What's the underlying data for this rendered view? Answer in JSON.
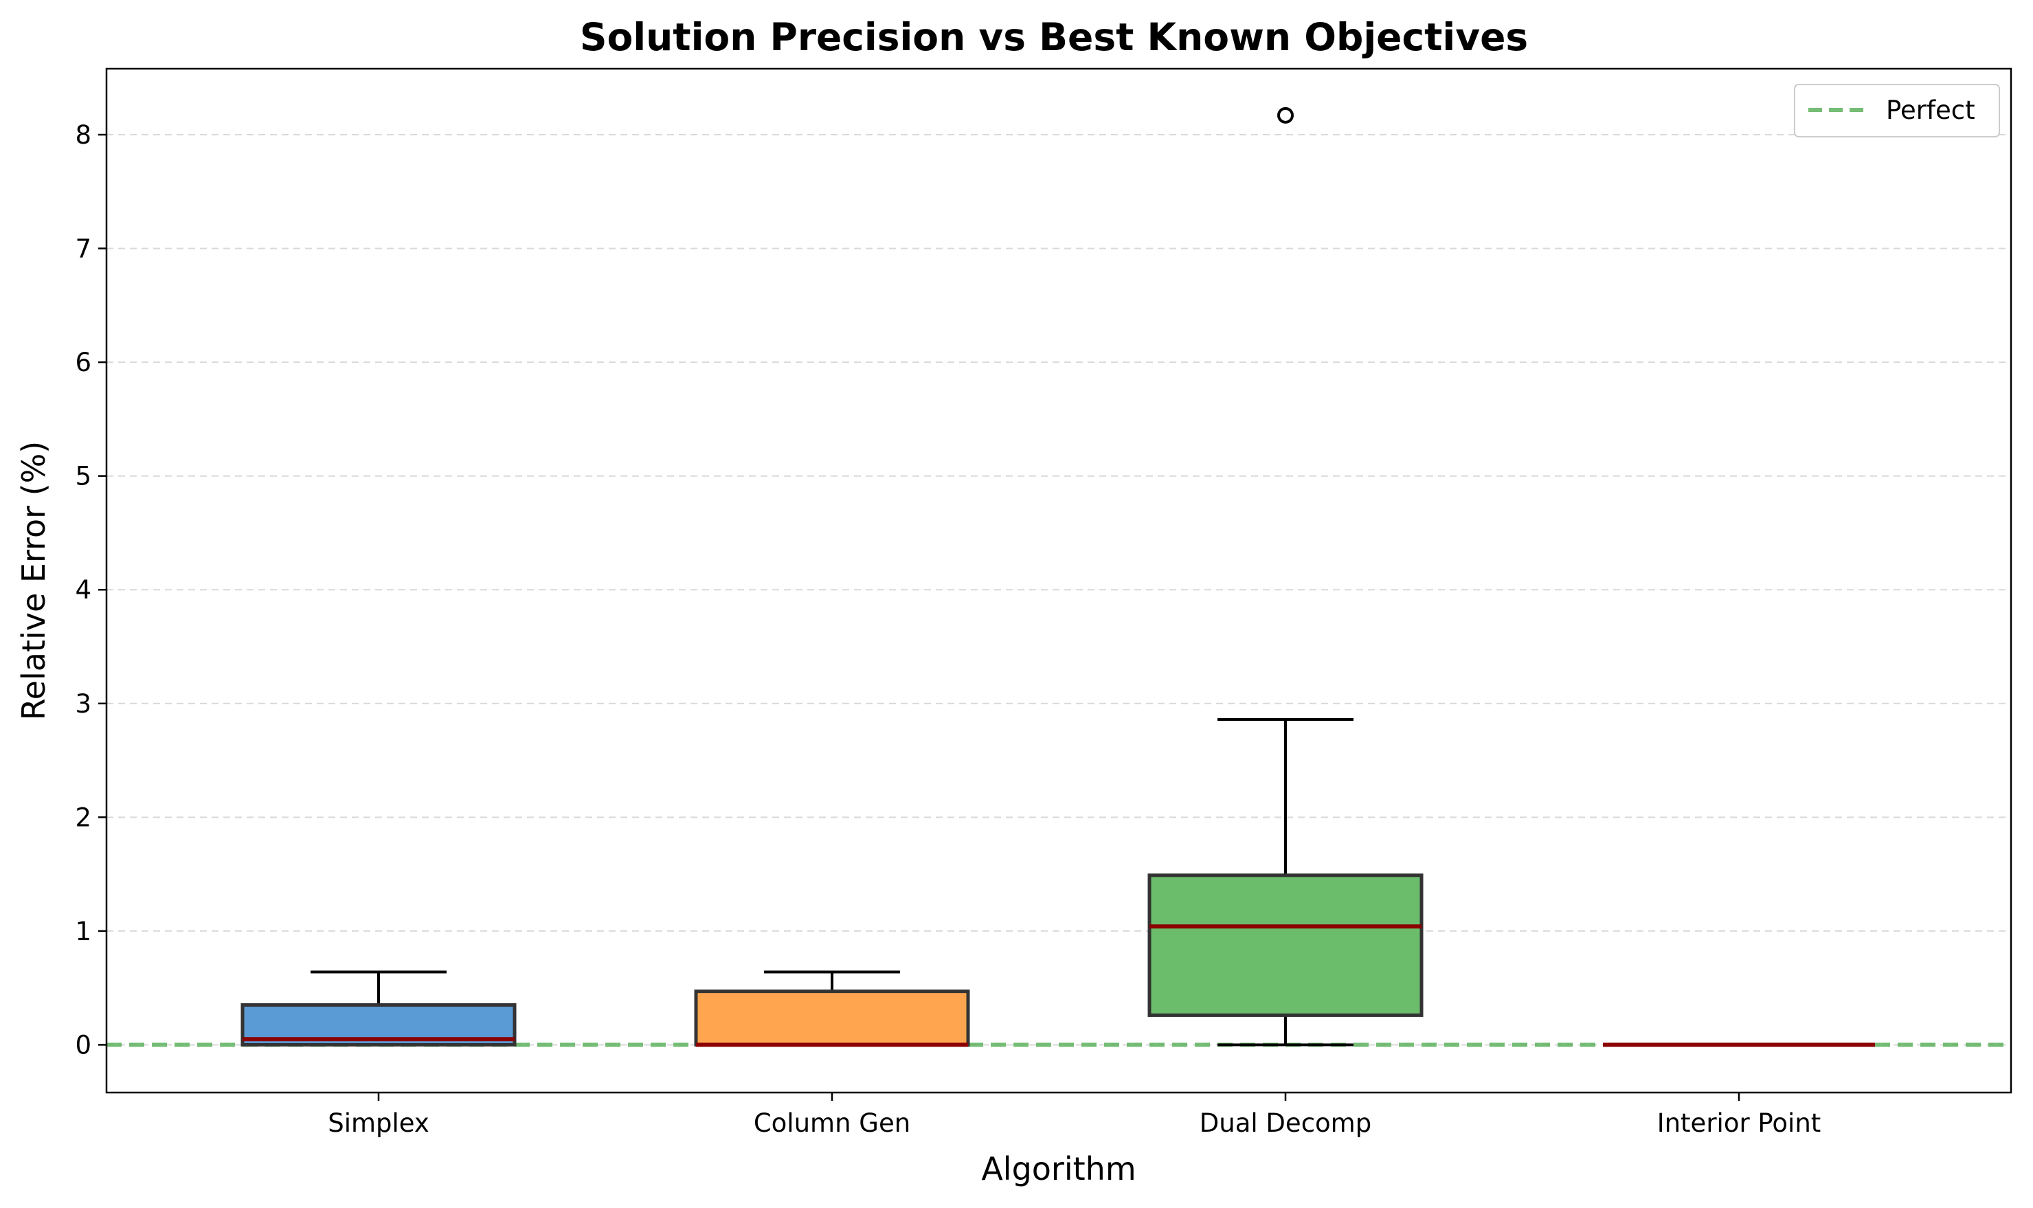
{
  "chart_data": {
    "type": "box",
    "title": "Solution Precision vs Best Known Objectives",
    "xlabel": "Algorithm",
    "ylabel": "Relative Error (%)",
    "ylim": [
      -0.42,
      8.58
    ],
    "yticks": [
      0,
      1,
      2,
      3,
      4,
      5,
      6,
      7,
      8
    ],
    "grid": "y-dashed",
    "legend": {
      "placement": "top-right",
      "entries": [
        "Perfect"
      ]
    },
    "reference_line": {
      "name": "Perfect",
      "y": 0,
      "style": "dashed",
      "color": "#5fb25f"
    },
    "categories": [
      "Simplex",
      "Column Gen",
      "Dual Decomp",
      "Interior Point"
    ],
    "boxes": [
      {
        "name": "Simplex",
        "whisker_low": 0.0,
        "q1": 0.0,
        "median": 0.05,
        "q3": 0.35,
        "whisker_high": 0.64,
        "outliers": [],
        "color": "#5b9bd5"
      },
      {
        "name": "Column Gen",
        "whisker_low": 0.0,
        "q1": 0.0,
        "median": 0.0,
        "q3": 0.47,
        "whisker_high": 0.64,
        "outliers": [],
        "color": "#ffa54f"
      },
      {
        "name": "Dual Decomp",
        "whisker_low": 0.0,
        "q1": 0.26,
        "median": 1.04,
        "q3": 1.49,
        "whisker_high": 2.86,
        "outliers": [
          8.17
        ],
        "color": "#6bbd6b"
      },
      {
        "name": "Interior Point",
        "whisker_low": 0.0,
        "q1": 0.0,
        "median": 0.0,
        "q3": 0.0,
        "whisker_high": 0.0,
        "outliers": [],
        "color": "#d9534f"
      }
    ],
    "colors": {
      "median": "#8b0000",
      "box_edge": "#333333",
      "whisker": "#000000"
    }
  }
}
